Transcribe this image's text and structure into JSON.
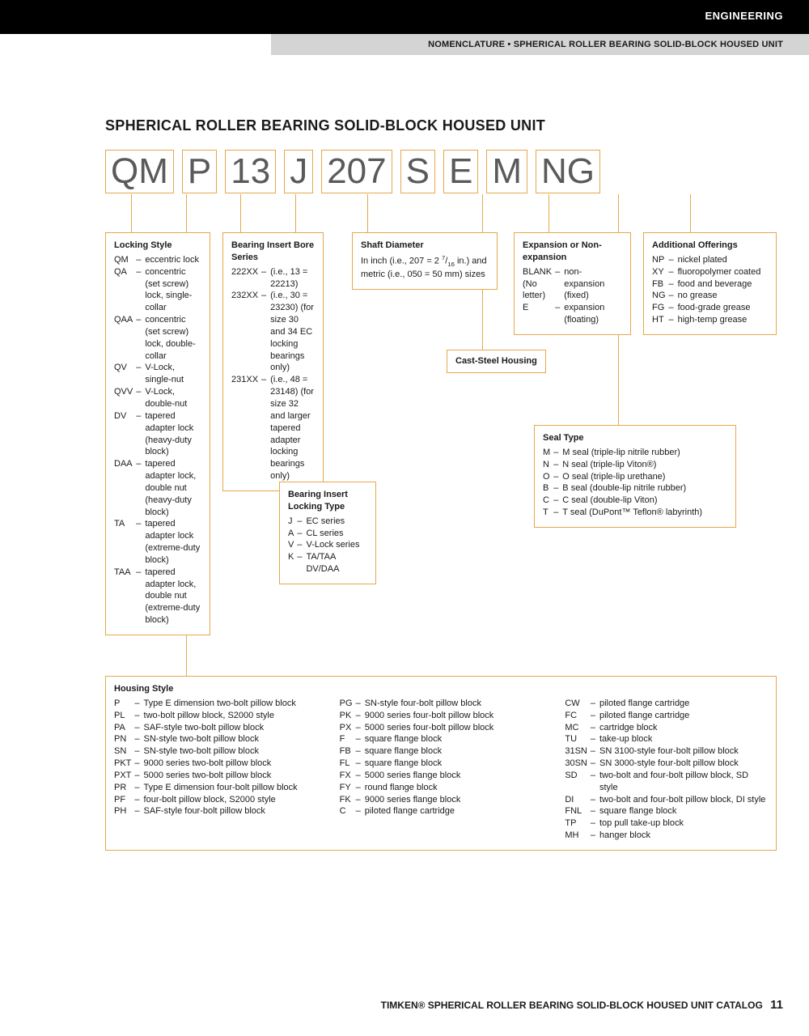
{
  "header": {
    "black_bar": "ENGINEERING",
    "gray_bar": "NOMENCLATURE • SPHERICAL ROLLER BEARING SOLID-BLOCK HOUSED UNIT"
  },
  "title": "SPHERICAL ROLLER BEARING SOLID-BLOCK HOUSED UNIT",
  "code_parts": [
    "QM",
    "P",
    "13",
    "J",
    "207",
    "S",
    "E",
    "M",
    "NG"
  ],
  "colors": {
    "accent": "#e6a84a",
    "code_text": "#5a5a5a",
    "black": "#000000",
    "gray_bar": "#d4d4d4"
  },
  "locking_style": {
    "title": "Locking Style",
    "items": [
      {
        "code": "QM",
        "text": "eccentric lock"
      },
      {
        "code": "QA",
        "text": "concentric (set screw) lock, single-collar"
      },
      {
        "code": "QAA",
        "text": "concentric (set screw) lock, double-collar"
      },
      {
        "code": "QV",
        "text": "V-Lock, single-nut"
      },
      {
        "code": "QVV",
        "text": "V-Lock, double-nut"
      },
      {
        "code": "DV",
        "text": "tapered adapter lock (heavy-duty block)"
      },
      {
        "code": "DAA",
        "text": "tapered adapter lock, double nut (heavy-duty block)"
      },
      {
        "code": "TA",
        "text": "tapered adapter lock (extreme-duty block)"
      },
      {
        "code": "TAA",
        "text": "tapered adapter lock, double nut (extreme-duty block)"
      }
    ]
  },
  "bearing_insert": {
    "title": "Bearing Insert Bore Series",
    "items": [
      {
        "code": "222XX",
        "text": "(i.e., 13 = 22213)"
      },
      {
        "code": "232XX",
        "text": "(i.e., 30 = 23230) (for size 30 and 34 EC locking bearings only)"
      },
      {
        "code": "231XX",
        "text": "(i.e., 48 = 23148) (for size 32 and larger tapered adapter locking bearings only)"
      }
    ]
  },
  "locking_type": {
    "title": "Bearing Insert Locking Type",
    "items": [
      {
        "code": "J",
        "text": "EC series"
      },
      {
        "code": "A",
        "text": "CL series"
      },
      {
        "code": "V",
        "text": "V-Lock series"
      },
      {
        "code": "K",
        "text": "TA/TAA DV/DAA"
      }
    ]
  },
  "shaft": {
    "title": "Shaft Diameter",
    "text": "In inch (i.e., 207 = 2 7/16 in.) and metric (i.e., 050 = 50 mm) sizes"
  },
  "cast_steel": "Cast-Steel Housing",
  "expansion": {
    "title": "Expansion or Non-expansion",
    "items": [
      {
        "code": "BLANK (No letter)",
        "text": "non-expansion (fixed)"
      },
      {
        "code": "E",
        "text": "expansion (floating)"
      }
    ]
  },
  "seal": {
    "title": "Seal Type",
    "items": [
      {
        "code": "M",
        "text": "M seal (triple-lip nitrile rubber)"
      },
      {
        "code": "N",
        "text": "N seal (triple-lip Viton®)"
      },
      {
        "code": "O",
        "text": "O seal (triple-lip urethane)"
      },
      {
        "code": "B",
        "text": "B seal (double-lip nitrile rubber)"
      },
      {
        "code": "C",
        "text": "C seal (double-lip Viton)"
      },
      {
        "code": "T",
        "text": "T seal (DuPont™ Teflon® labyrinth)"
      }
    ]
  },
  "additional": {
    "title": "Additional Offerings",
    "items": [
      {
        "code": "NP",
        "text": "nickel plated"
      },
      {
        "code": "XY",
        "text": "fluoropolymer coated"
      },
      {
        "code": "FB",
        "text": "food and beverage"
      },
      {
        "code": "NG",
        "text": "no grease"
      },
      {
        "code": "FG",
        "text": "food-grade grease"
      },
      {
        "code": "HT",
        "text": "high-temp grease"
      }
    ]
  },
  "housing": {
    "title": "Housing Style",
    "col1": [
      {
        "code": "P",
        "text": "Type E dimension two-bolt pillow block"
      },
      {
        "code": "PL",
        "text": "two-bolt pillow block, S2000 style"
      },
      {
        "code": "PA",
        "text": "SAF-style two-bolt pillow block"
      },
      {
        "code": "PN",
        "text": "SN-style two-bolt pillow block"
      },
      {
        "code": "SN",
        "text": "SN-style two-bolt pillow block"
      },
      {
        "code": "PKT",
        "text": "9000 series two-bolt pillow block"
      },
      {
        "code": "PXT",
        "text": "5000 series two-bolt pillow block"
      },
      {
        "code": "PR",
        "text": "Type E dimension four-bolt pillow block"
      },
      {
        "code": "PF",
        "text": "four-bolt pillow block, S2000 style"
      },
      {
        "code": "PH",
        "text": "SAF-style four-bolt pillow block"
      }
    ],
    "col2": [
      {
        "code": "PG",
        "text": "SN-style four-bolt pillow block"
      },
      {
        "code": "PK",
        "text": "9000 series four-bolt pillow block"
      },
      {
        "code": "PX",
        "text": "5000 series four-bolt pillow block"
      },
      {
        "code": "F",
        "text": "square flange block"
      },
      {
        "code": "FB",
        "text": "square flange block"
      },
      {
        "code": "FL",
        "text": "square flange block"
      },
      {
        "code": "FX",
        "text": "5000 series flange block"
      },
      {
        "code": "FY",
        "text": "round flange block"
      },
      {
        "code": "FK",
        "text": "9000 series flange block"
      },
      {
        "code": "C",
        "text": "piloted flange cartridge"
      }
    ],
    "col3": [
      {
        "code": "CW",
        "text": "piloted flange cartridge"
      },
      {
        "code": "FC",
        "text": "piloted flange cartridge"
      },
      {
        "code": "MC",
        "text": "cartridge block"
      },
      {
        "code": "TU",
        "text": "take-up block"
      },
      {
        "code": "31SN",
        "text": "SN 3100-style four-bolt pillow block"
      },
      {
        "code": "30SN",
        "text": "SN 3000-style four-bolt pillow block"
      },
      {
        "code": "SD",
        "text": "two-bolt and four-bolt pillow block, SD style"
      },
      {
        "code": "DI",
        "text": "two-bolt and four-bolt pillow block, DI style"
      },
      {
        "code": "FNL",
        "text": "square flange block"
      },
      {
        "code": "TP",
        "text": "top pull take-up block"
      },
      {
        "code": "MH",
        "text": "hanger block"
      }
    ]
  },
  "footer": {
    "text": "TIMKEN® SPHERICAL ROLLER BEARING SOLID-BLOCK HOUSED UNIT CATALOG",
    "page": "11"
  }
}
